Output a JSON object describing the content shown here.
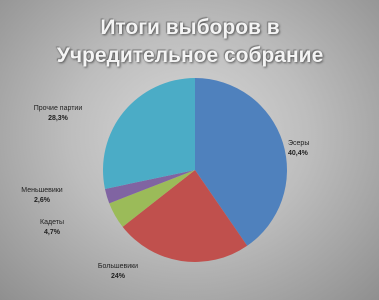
{
  "chart_data": {
    "type": "pie",
    "title": "Итоги выборов в Учредительное собрание",
    "categories": [
      "Эсеры",
      "Большевики",
      "Кадеты",
      "Меньшевики",
      "Прочие партии"
    ],
    "values": [
      40.4,
      24,
      4.7,
      2.6,
      28.3
    ],
    "value_labels": [
      "40,4%",
      "24%",
      "4,7%",
      "2,6%",
      "28,3%"
    ],
    "colors": [
      "#4f81bd",
      "#c0504d",
      "#9bbb59",
      "#8064a2",
      "#4bacc6"
    ]
  }
}
